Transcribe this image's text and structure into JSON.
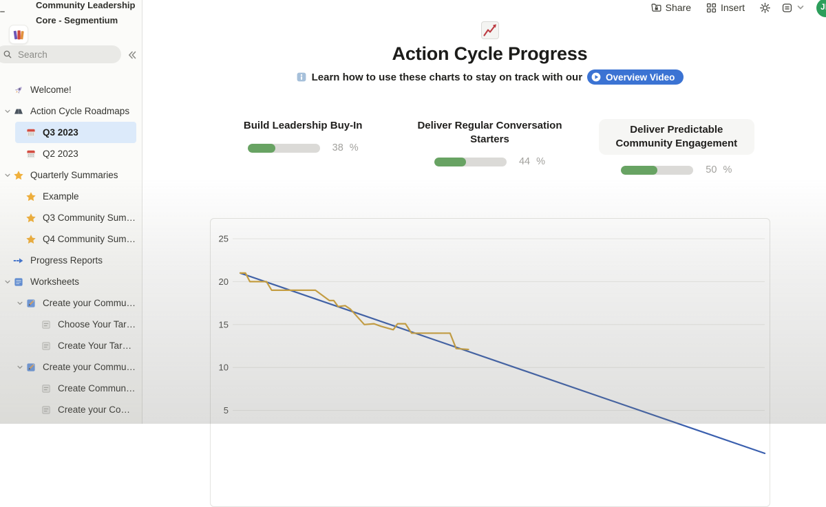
{
  "workspace": {
    "name": "Community Leadership Core - Segmentium",
    "icon": "books-icon"
  },
  "search": {
    "placeholder": "Search"
  },
  "sidebar": {
    "items": [
      {
        "label": "Welcome!",
        "icon": "rocket",
        "level": 1
      },
      {
        "label": "Action Cycle Roadmaps",
        "icon": "roadmap",
        "level": 1,
        "chevron": true
      },
      {
        "label": "Q3 2023",
        "icon": "calendar",
        "level": 2,
        "selected": true
      },
      {
        "label": "Q2 2023",
        "icon": "calendar",
        "level": 2
      },
      {
        "label": "Quarterly Summaries",
        "icon": "star",
        "level": 1,
        "chevron": true
      },
      {
        "label": "Example",
        "icon": "star",
        "level": 2
      },
      {
        "label": "Q3 Community Summ...",
        "icon": "star",
        "level": 2
      },
      {
        "label": "Q4 Community Summ...",
        "icon": "star",
        "level": 2
      },
      {
        "label": "Progress Reports",
        "icon": "arrow",
        "level": 1
      },
      {
        "label": "Worksheets",
        "icon": "ledger",
        "level": 1,
        "chevron": true
      },
      {
        "label": "Create your Communit...",
        "icon": "memo",
        "level": 2,
        "chevron": true
      },
      {
        "label": "Choose Your Targ...",
        "icon": "page",
        "level": 3
      },
      {
        "label": "Create Your Targe...",
        "icon": "page",
        "level": 3
      },
      {
        "label": "Create your Communit...",
        "icon": "memo",
        "level": 2,
        "chevron": true
      },
      {
        "label": "Create Community...",
        "icon": "page",
        "level": 3
      },
      {
        "label": "Create your Comm...",
        "icon": "page",
        "level": 3
      }
    ]
  },
  "topbar": {
    "share": "Share",
    "insert": "Insert",
    "avatar_initials": "JE"
  },
  "page": {
    "title": "Action Cycle Progress",
    "callout_text": "Learn how to use these charts to stay on track with our",
    "video_button_label": "Overview Video"
  },
  "goals": [
    {
      "title": "Build Leadership Buy-In",
      "percent": 38,
      "percent_label": "38",
      "unit": "%"
    },
    {
      "title": "Deliver Regular Conversation Starters",
      "percent": 44,
      "percent_label": "44",
      "unit": "%"
    },
    {
      "title": "Deliver Predictable Community Engagement",
      "percent": 50,
      "percent_label": "50",
      "unit": "%",
      "highlighted": true
    }
  ],
  "chart_data": {
    "type": "line",
    "title": "",
    "xlabel": "",
    "ylabel": "",
    "x_range": [
      0,
      60
    ],
    "y_range": [
      0,
      25
    ],
    "y_ticks": [
      5,
      10,
      15,
      20,
      25
    ],
    "grid": true,
    "legend": "none",
    "series": [
      {
        "name": "trend",
        "color": "#3a5fae",
        "points": [
          [
            0,
            21
          ],
          [
            60,
            0
          ]
        ]
      },
      {
        "name": "actual",
        "color": "#cfa33c",
        "points": [
          [
            0,
            21
          ],
          [
            0.6,
            21
          ],
          [
            1.1,
            20
          ],
          [
            3.0,
            20
          ],
          [
            3.6,
            19
          ],
          [
            8.6,
            19
          ],
          [
            10.2,
            17.8
          ],
          [
            10.7,
            17.8
          ],
          [
            11.2,
            17.1
          ],
          [
            12.0,
            17.2
          ],
          [
            12.6,
            16.8
          ],
          [
            14.2,
            15
          ],
          [
            15.3,
            15.1
          ],
          [
            16.1,
            14.8
          ],
          [
            17.5,
            14.4
          ],
          [
            18.0,
            15.1
          ],
          [
            18.9,
            15.1
          ],
          [
            19.6,
            14
          ],
          [
            24.0,
            14
          ],
          [
            24.7,
            12.2
          ],
          [
            26.1,
            12.1
          ]
        ]
      }
    ]
  }
}
